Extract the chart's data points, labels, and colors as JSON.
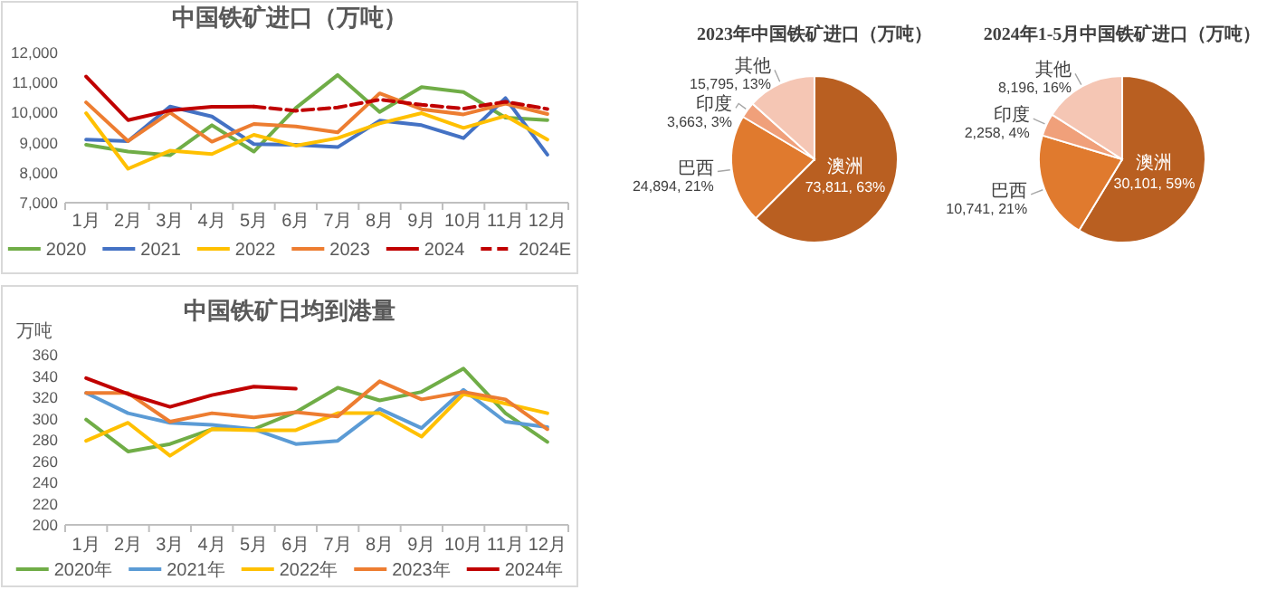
{
  "chart_data": [
    {
      "type": "line",
      "title": "中国铁矿进口（万吨）",
      "categories": [
        "1月",
        "2月",
        "3月",
        "4月",
        "5月",
        "6月",
        "7月",
        "8月",
        "9月",
        "10月",
        "11月",
        "12月"
      ],
      "ylim": [
        7000,
        12000
      ],
      "yticks": [
        {
          "value": 7000,
          "label": "7,000"
        },
        {
          "value": 8000,
          "label": "8,000"
        },
        {
          "value": 9000,
          "label": "9,000"
        },
        {
          "value": 10000,
          "label": "10,000"
        },
        {
          "value": 11000,
          "label": "11,000"
        },
        {
          "value": 12000,
          "label": "12,000"
        }
      ],
      "legend": "bottom",
      "series": [
        {
          "name": "2020",
          "color": "#70ad47",
          "values": [
            8930,
            8700,
            8580,
            9580,
            8700,
            10150,
            11250,
            10020,
            10850,
            10680,
            9830,
            9750
          ]
        },
        {
          "name": "2021",
          "color": "#4472c4",
          "values": [
            9100,
            9050,
            10200,
            9870,
            8950,
            8930,
            8850,
            9730,
            9580,
            9150,
            10480,
            8600
          ]
        },
        {
          "name": "2022",
          "color": "#ffc000",
          "values": [
            9980,
            8130,
            8730,
            8620,
            9260,
            8900,
            9150,
            9640,
            9980,
            9490,
            9890,
            9100
          ]
        },
        {
          "name": "2023",
          "color": "#ed7d31",
          "values": [
            10340,
            9050,
            10000,
            9030,
            9620,
            9540,
            9340,
            10640,
            10110,
            9940,
            10300,
            9950
          ]
        },
        {
          "name": "2024",
          "color": "#c00000",
          "values": [
            11200,
            9750,
            10070,
            10190,
            10200,
            null,
            null,
            null,
            null,
            null,
            null,
            null
          ]
        },
        {
          "name": "2024E",
          "color": "#c00000",
          "line_style": "dashed",
          "values": [
            null,
            null,
            null,
            null,
            10200,
            10060,
            10170,
            10430,
            10260,
            10130,
            10360,
            10120
          ]
        }
      ]
    },
    {
      "type": "line",
      "title": "中国铁矿日均到港量",
      "ylabel": "万吨",
      "categories": [
        "1月",
        "2月",
        "3月",
        "4月",
        "5月",
        "6月",
        "7月",
        "8月",
        "9月",
        "10月",
        "11月",
        "12月"
      ],
      "ylim": [
        200,
        360
      ],
      "yticks": [
        200,
        220,
        240,
        260,
        280,
        300,
        320,
        340,
        360
      ],
      "legend": "bottom",
      "series": [
        {
          "name": "2020年",
          "color": "#70ad47",
          "values": [
            299,
            269,
            276,
            290,
            290,
            306,
            329,
            317,
            325,
            347,
            305,
            278
          ]
        },
        {
          "name": "2021年",
          "color": "#5b9bd5",
          "values": [
            324,
            305,
            296,
            294,
            290,
            276,
            279,
            309,
            291,
            327,
            297,
            292
          ]
        },
        {
          "name": "2022年",
          "color": "#ffc000",
          "values": [
            279,
            296,
            265,
            290,
            289,
            289,
            305,
            305,
            283,
            323,
            314,
            305
          ]
        },
        {
          "name": "2023年",
          "color": "#ed7d31",
          "values": [
            324,
            324,
            297,
            305,
            301,
            306,
            302,
            335,
            318,
            325,
            318,
            290
          ]
        },
        {
          "name": "2024年",
          "color": "#c00000",
          "values": [
            338,
            323,
            311,
            322,
            330,
            328,
            null,
            null,
            null,
            null,
            null,
            null
          ]
        }
      ]
    },
    {
      "type": "pie",
      "title": "2023年中国铁矿进口（万吨）",
      "categories": [
        "澳洲",
        "巴西",
        "印度",
        "其他"
      ],
      "values": [
        73811,
        24894,
        3663,
        15795
      ],
      "value_labels": [
        "73,811, 63%",
        "24,894, 21%",
        "3,663, 3%",
        "15,795, 13%"
      ],
      "colors": [
        "#b95f21",
        "#e07a2e",
        "#f0a07a",
        "#f5c6b4"
      ]
    },
    {
      "type": "pie",
      "title": "2024年1-5月中国铁矿进口（万吨）",
      "categories": [
        "澳洲",
        "巴西",
        "印度",
        "其他"
      ],
      "values": [
        30101,
        10741,
        2258,
        8196
      ],
      "value_labels": [
        "30,101, 59%",
        "10,741, 21%",
        "2,258, 4%",
        "8,196, 16%"
      ],
      "colors": [
        "#b95f21",
        "#e07a2e",
        "#f0a07a",
        "#f5c6b4"
      ]
    }
  ]
}
